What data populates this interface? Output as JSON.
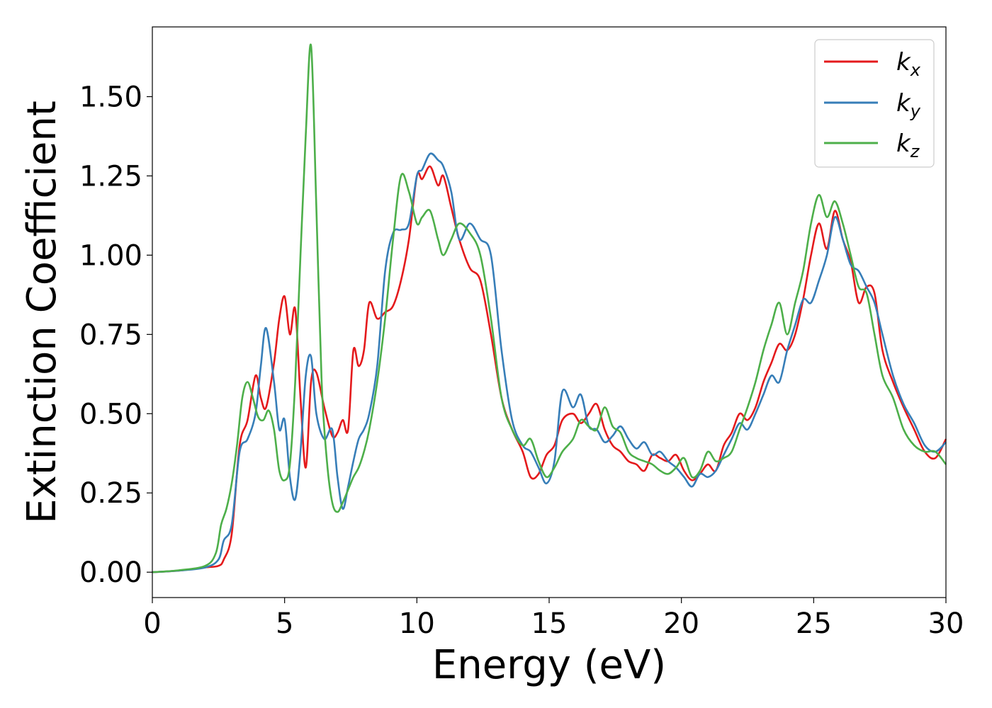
{
  "chart_data": {
    "type": "line",
    "title": "",
    "xlabel": "Energy (eV)",
    "ylabel": "Extinction Coefficient",
    "xlim": [
      0,
      30
    ],
    "ylim": [
      -0.08,
      1.72
    ],
    "xticks": [
      "0",
      "5",
      "10",
      "15",
      "20",
      "25",
      "30"
    ],
    "yticks": [
      "0.00",
      "0.25",
      "0.50",
      "0.75",
      "1.00",
      "1.25",
      "1.50"
    ],
    "grid": false,
    "legend_position": "top-right",
    "series": [
      {
        "name": "k",
        "subscript": "x",
        "color": "#e41a1c",
        "x": [
          0,
          1,
          2,
          2.5,
          2.7,
          3.0,
          3.3,
          3.6,
          3.9,
          4.1,
          4.3,
          4.6,
          4.8,
          5.0,
          5.2,
          5.4,
          5.6,
          5.8,
          6.0,
          6.2,
          6.5,
          6.8,
          7.0,
          7.2,
          7.4,
          7.6,
          7.8,
          8.0,
          8.2,
          8.5,
          8.8,
          9.1,
          9.4,
          9.7,
          10.0,
          10.2,
          10.5,
          10.8,
          11.0,
          11.3,
          11.6,
          12.0,
          12.4,
          12.8,
          13.2,
          13.6,
          14.0,
          14.3,
          14.6,
          14.9,
          15.2,
          15.5,
          15.9,
          16.2,
          16.5,
          16.8,
          17.1,
          17.4,
          17.7,
          18.0,
          18.3,
          18.6,
          18.9,
          19.2,
          19.5,
          19.8,
          20.1,
          20.4,
          20.7,
          21.0,
          21.3,
          21.6,
          21.9,
          22.2,
          22.5,
          22.8,
          23.1,
          23.4,
          23.7,
          24.0,
          24.3,
          24.6,
          24.9,
          25.2,
          25.5,
          25.8,
          26.1,
          26.4,
          26.7,
          27.0,
          27.3,
          27.6,
          28.0,
          28.4,
          28.8,
          29.2,
          29.6,
          30.0
        ],
        "y": [
          0.0,
          0.005,
          0.015,
          0.02,
          0.04,
          0.12,
          0.4,
          0.48,
          0.62,
          0.55,
          0.52,
          0.66,
          0.8,
          0.87,
          0.75,
          0.83,
          0.55,
          0.33,
          0.6,
          0.63,
          0.52,
          0.43,
          0.44,
          0.48,
          0.45,
          0.7,
          0.65,
          0.7,
          0.85,
          0.8,
          0.82,
          0.84,
          0.92,
          1.05,
          1.25,
          1.24,
          1.28,
          1.22,
          1.25,
          1.15,
          1.05,
          0.96,
          0.92,
          0.75,
          0.55,
          0.45,
          0.38,
          0.3,
          0.31,
          0.37,
          0.4,
          0.48,
          0.5,
          0.47,
          0.5,
          0.53,
          0.45,
          0.4,
          0.38,
          0.35,
          0.34,
          0.32,
          0.37,
          0.36,
          0.35,
          0.37,
          0.32,
          0.29,
          0.31,
          0.34,
          0.32,
          0.4,
          0.44,
          0.5,
          0.48,
          0.52,
          0.6,
          0.66,
          0.72,
          0.7,
          0.75,
          0.86,
          1.0,
          1.1,
          1.02,
          1.14,
          1.05,
          0.98,
          0.85,
          0.9,
          0.88,
          0.7,
          0.6,
          0.52,
          0.45,
          0.38,
          0.36,
          0.42
        ]
      },
      {
        "name": "k",
        "subscript": "y",
        "color": "#377eb8",
        "x": [
          0,
          1,
          2,
          2.5,
          2.7,
          3.0,
          3.3,
          3.6,
          3.9,
          4.1,
          4.3,
          4.6,
          4.8,
          5.0,
          5.2,
          5.4,
          5.6,
          5.8,
          6.0,
          6.2,
          6.5,
          6.8,
          7.0,
          7.2,
          7.4,
          7.6,
          7.8,
          8.0,
          8.2,
          8.5,
          8.8,
          9.1,
          9.4,
          9.7,
          10.0,
          10.2,
          10.5,
          10.8,
          11.0,
          11.3,
          11.6,
          12.0,
          12.4,
          12.8,
          13.2,
          13.6,
          14.0,
          14.3,
          14.6,
          14.9,
          15.2,
          15.5,
          15.9,
          16.2,
          16.5,
          16.8,
          17.1,
          17.4,
          17.7,
          18.0,
          18.3,
          18.6,
          18.9,
          19.2,
          19.5,
          19.8,
          20.1,
          20.4,
          20.7,
          21.0,
          21.3,
          21.6,
          21.9,
          22.2,
          22.5,
          22.8,
          23.1,
          23.4,
          23.7,
          24.0,
          24.3,
          24.6,
          24.9,
          25.2,
          25.5,
          25.8,
          26.1,
          26.4,
          26.7,
          27.0,
          27.3,
          27.6,
          28.0,
          28.4,
          28.8,
          29.2,
          29.6,
          30.0
        ],
        "y": [
          0.0,
          0.005,
          0.015,
          0.04,
          0.1,
          0.15,
          0.38,
          0.42,
          0.5,
          0.65,
          0.77,
          0.6,
          0.45,
          0.48,
          0.3,
          0.23,
          0.38,
          0.62,
          0.68,
          0.5,
          0.42,
          0.45,
          0.3,
          0.2,
          0.27,
          0.35,
          0.42,
          0.45,
          0.5,
          0.65,
          0.95,
          1.07,
          1.08,
          1.1,
          1.25,
          1.27,
          1.32,
          1.3,
          1.28,
          1.2,
          1.05,
          1.1,
          1.05,
          1.0,
          0.7,
          0.48,
          0.4,
          0.38,
          0.33,
          0.28,
          0.35,
          0.57,
          0.52,
          0.56,
          0.46,
          0.45,
          0.41,
          0.43,
          0.46,
          0.42,
          0.39,
          0.41,
          0.37,
          0.38,
          0.35,
          0.33,
          0.3,
          0.27,
          0.31,
          0.3,
          0.32,
          0.37,
          0.42,
          0.47,
          0.45,
          0.5,
          0.56,
          0.62,
          0.6,
          0.7,
          0.78,
          0.86,
          0.85,
          0.92,
          1.0,
          1.12,
          1.05,
          0.97,
          0.95,
          0.9,
          0.85,
          0.75,
          0.62,
          0.53,
          0.47,
          0.4,
          0.38,
          0.41
        ]
      },
      {
        "name": "k",
        "subscript": "z",
        "color": "#4daf4a",
        "x": [
          0,
          1,
          2,
          2.4,
          2.6,
          2.8,
          3.0,
          3.2,
          3.4,
          3.6,
          3.8,
          4.0,
          4.2,
          4.4,
          4.6,
          4.8,
          5.0,
          5.2,
          5.4,
          5.6,
          5.8,
          6.0,
          6.2,
          6.4,
          6.6,
          6.8,
          7.0,
          7.2,
          7.4,
          7.6,
          7.8,
          8.0,
          8.2,
          8.5,
          8.8,
          9.1,
          9.4,
          9.7,
          10.0,
          10.2,
          10.5,
          10.8,
          11.0,
          11.3,
          11.6,
          12.0,
          12.4,
          12.8,
          13.2,
          13.6,
          14.0,
          14.3,
          14.6,
          14.9,
          15.2,
          15.5,
          15.9,
          16.2,
          16.5,
          16.8,
          17.1,
          17.4,
          17.7,
          18.0,
          18.3,
          18.6,
          18.9,
          19.2,
          19.5,
          19.8,
          20.1,
          20.4,
          20.7,
          21.0,
          21.3,
          21.6,
          21.9,
          22.2,
          22.5,
          22.8,
          23.1,
          23.4,
          23.7,
          24.0,
          24.3,
          24.6,
          24.9,
          25.2,
          25.5,
          25.8,
          26.1,
          26.4,
          26.7,
          27.0,
          27.3,
          27.6,
          28.0,
          28.4,
          28.8,
          29.2,
          29.6,
          30.0
        ],
        "y": [
          0.0,
          0.006,
          0.02,
          0.06,
          0.15,
          0.2,
          0.28,
          0.4,
          0.55,
          0.6,
          0.55,
          0.49,
          0.48,
          0.51,
          0.45,
          0.32,
          0.29,
          0.34,
          0.6,
          1.0,
          1.38,
          1.66,
          1.15,
          0.6,
          0.35,
          0.22,
          0.19,
          0.22,
          0.26,
          0.3,
          0.33,
          0.38,
          0.45,
          0.6,
          0.8,
          1.05,
          1.25,
          1.2,
          1.1,
          1.12,
          1.14,
          1.05,
          1.0,
          1.05,
          1.1,
          1.07,
          1.0,
          0.8,
          0.55,
          0.45,
          0.4,
          0.42,
          0.35,
          0.3,
          0.33,
          0.38,
          0.42,
          0.48,
          0.46,
          0.45,
          0.52,
          0.46,
          0.44,
          0.38,
          0.36,
          0.35,
          0.34,
          0.32,
          0.31,
          0.33,
          0.36,
          0.3,
          0.32,
          0.38,
          0.35,
          0.36,
          0.38,
          0.45,
          0.52,
          0.6,
          0.7,
          0.78,
          0.85,
          0.75,
          0.85,
          0.95,
          1.1,
          1.19,
          1.12,
          1.17,
          1.1,
          1.0,
          0.9,
          0.88,
          0.75,
          0.62,
          0.55,
          0.45,
          0.4,
          0.38,
          0.38,
          0.34
        ]
      }
    ]
  }
}
